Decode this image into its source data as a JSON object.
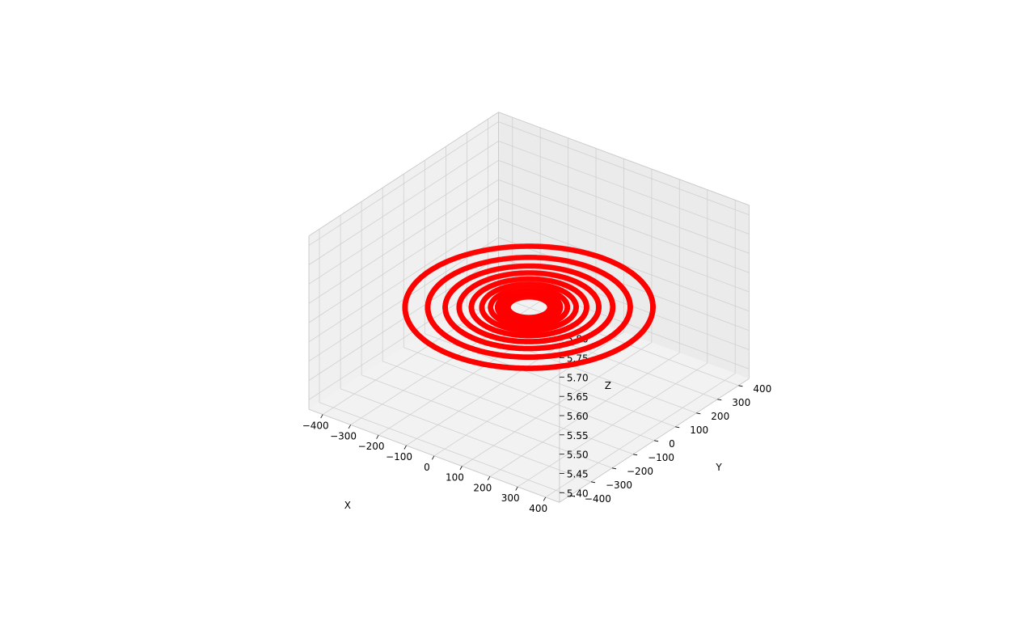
{
  "chart_data": {
    "type": "scatter",
    "projection": "3d",
    "title": "",
    "xlabel": "X",
    "ylabel": "Y",
    "zlabel": "Z",
    "xlim": [
      -450,
      450
    ],
    "ylim": [
      -450,
      450
    ],
    "zlim": [
      5.375,
      5.825
    ],
    "x_ticks": [
      -400,
      -300,
      -200,
      -100,
      0,
      100,
      200,
      300,
      400
    ],
    "x_tick_labels": [
      "−400",
      "−300",
      "−200",
      "−100",
      "0",
      "100",
      "200",
      "300",
      "400"
    ],
    "y_ticks": [
      -400,
      -300,
      -200,
      -100,
      0,
      100,
      200,
      300,
      400
    ],
    "y_tick_labels": [
      "−400",
      "−300",
      "−200",
      "−100",
      "0",
      "100",
      "200",
      "300",
      "400"
    ],
    "z_ticks": [
      5.4,
      5.45,
      5.5,
      5.55,
      5.6,
      5.65,
      5.7,
      5.75,
      5.8
    ],
    "z_tick_labels": [
      "5.40",
      "5.45",
      "5.50",
      "5.55",
      "5.60",
      "5.65",
      "5.70",
      "5.75",
      "5.80"
    ],
    "grid": true,
    "marker_color": "#ff0000",
    "pane_color": "#f2f2f2",
    "grid_color": "#d0d0d0",
    "series": [
      {
        "form": "circles",
        "z": 5.6,
        "center": [
          0,
          0
        ],
        "radii": [
          60,
          75,
          90,
          110,
          135,
          165,
          200,
          240,
          290,
          355
        ]
      }
    ]
  }
}
